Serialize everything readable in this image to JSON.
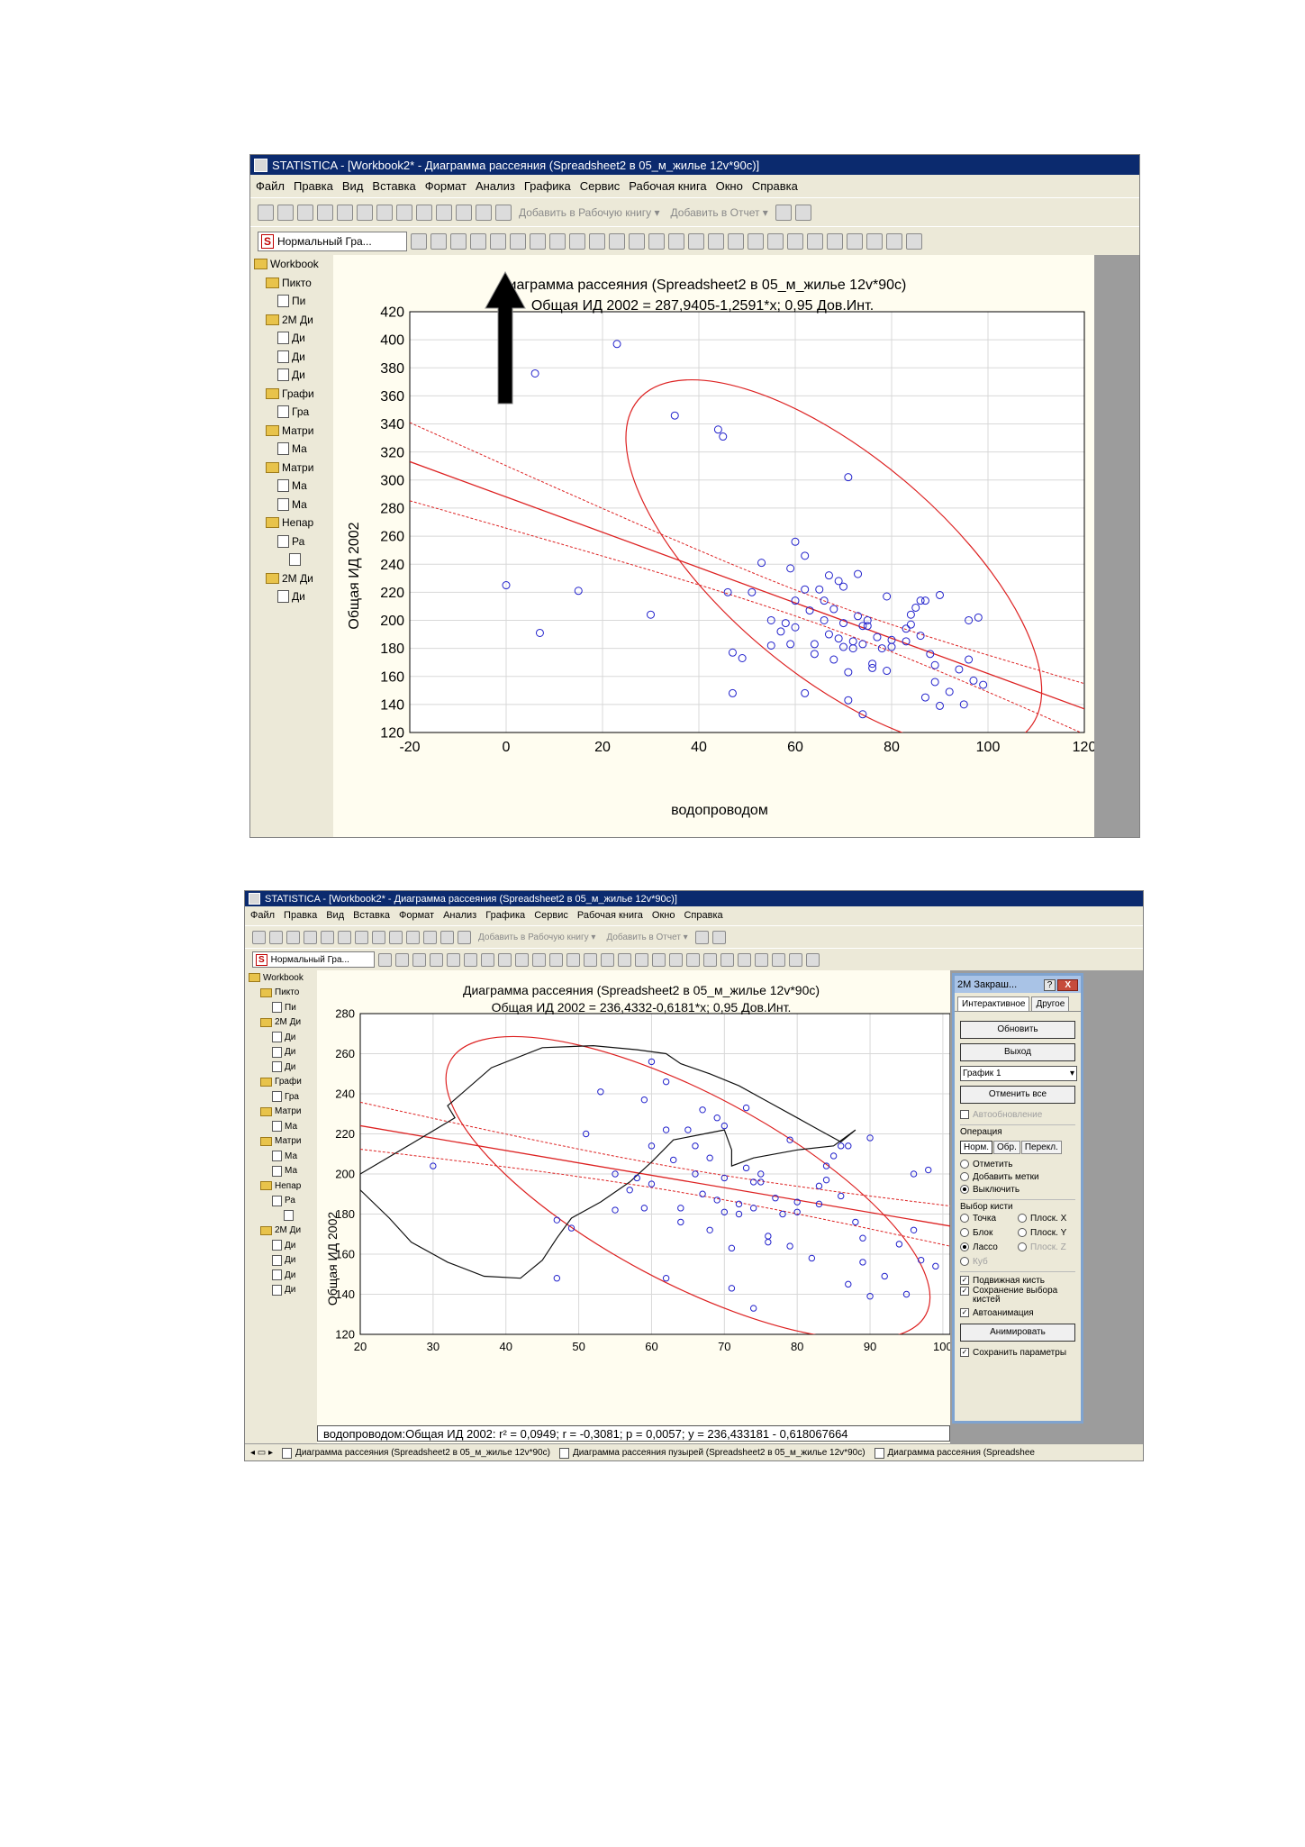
{
  "screenshot1": {
    "title": "STATISTICA - [Workbook2* - Диаграмма рассеяния (Spreadsheet2 в 05_м_жилье 12v*90c)]",
    "menu": [
      "Файл",
      "Правка",
      "Вид",
      "Вставка",
      "Формат",
      "Анализ",
      "Графика",
      "Сервис",
      "Рабочая книга",
      "Окно",
      "Справка"
    ],
    "toolbar_add_workbook": "Добавить в Рабочую книгу ▾",
    "toolbar_add_report": "Добавить в Отчет ▾",
    "style_combo": "Нормальный Гра...",
    "tree": [
      {
        "label": "Workbook",
        "level": 0
      },
      {
        "label": "Пикто",
        "level": 1
      },
      {
        "label": "Пи",
        "level": 2
      },
      {
        "label": "2М Ди",
        "level": 1
      },
      {
        "label": "Ди",
        "level": 2
      },
      {
        "label": "Ди",
        "level": 2
      },
      {
        "label": "Ди",
        "level": 2
      },
      {
        "label": "Графи",
        "level": 1
      },
      {
        "label": "Гра",
        "level": 2
      },
      {
        "label": "Матри",
        "level": 1
      },
      {
        "label": "Ма",
        "level": 2
      },
      {
        "label": "Матри",
        "level": 1
      },
      {
        "label": "Ма",
        "level": 2
      },
      {
        "label": "Ма",
        "level": 2
      },
      {
        "label": "Непар",
        "level": 1
      },
      {
        "label": "Ра",
        "level": 2
      },
      {
        "label": "",
        "level": 3
      },
      {
        "label": "2М Ди",
        "level": 1
      },
      {
        "label": "Ди",
        "level": 2
      }
    ]
  },
  "screenshot2": {
    "title": "STATISTICA - [Workbook2* - Диаграмма рассеяния (Spreadsheet2 в 05_м_жилье 12v*90c)]",
    "menu": [
      "Файл",
      "Правка",
      "Вид",
      "Вставка",
      "Формат",
      "Анализ",
      "Графика",
      "Сервис",
      "Рабочая книга",
      "Окно",
      "Справка"
    ],
    "toolbar_add_workbook": "Добавить в Рабочую книгу ▾",
    "toolbar_add_report": "Добавить в Отчет ▾",
    "style_combo": "Нормальный Гра...",
    "tree": [
      {
        "label": "Workbook",
        "level": 0
      },
      {
        "label": "Пикто",
        "level": 1
      },
      {
        "label": "Пи",
        "level": 2
      },
      {
        "label": "2М Ди",
        "level": 1
      },
      {
        "label": "Ди",
        "level": 2
      },
      {
        "label": "Ди",
        "level": 2
      },
      {
        "label": "Ди",
        "level": 2
      },
      {
        "label": "Графи",
        "level": 1
      },
      {
        "label": "Гра",
        "level": 2
      },
      {
        "label": "Матри",
        "level": 1
      },
      {
        "label": "Ма",
        "level": 2
      },
      {
        "label": "Матри",
        "level": 1
      },
      {
        "label": "Ма",
        "level": 2
      },
      {
        "label": "Ма",
        "level": 2
      },
      {
        "label": "Непар",
        "level": 1
      },
      {
        "label": "Ра",
        "level": 2
      },
      {
        "label": "",
        "level": 3
      },
      {
        "label": "2М Ди",
        "level": 1
      },
      {
        "label": "Ди",
        "level": 2
      },
      {
        "label": "Ди",
        "level": 2
      },
      {
        "label": "Ди",
        "level": 2
      },
      {
        "label": "Ди",
        "level": 2
      }
    ],
    "status": "водопроводом:Общая ИД 2002:  r² = 0,0949;  r = -0,3081; p = 0,0057;  y = 236,433181 - 0,618067664",
    "tabs": [
      "Диаграмма рассеяния (Spreadsheet2 в 05_м_жилье 12v*90c)",
      "Диаграмма рассеяния пузырей (Spreadsheet2 в 05_м_жилье 12v*90c)",
      "Диаграмма рассеяния (Spreadshee"
    ],
    "dialog": {
      "title": "2М Закраш...",
      "help": "?",
      "close": "X",
      "tab_interactive": "Интерактивное",
      "tab_other": "Другое",
      "btn_update": "Обновить",
      "btn_exit": "Выход",
      "graph_select": "График 1",
      "btn_unmark_all": "Отменить все",
      "auto_update": "Автообновление",
      "operation_label": "Операция",
      "seg_norm": "Норм.",
      "seg_obr": "Обр.",
      "seg_perekl": "Перекл.",
      "op_mark": "Отметить",
      "op_add_labels": "Добавить метки",
      "op_exclude": "Выключить",
      "brush_label": "Выбор кисти",
      "brush_point": "Точка",
      "brush_plane_x": "Плоск. X",
      "brush_block": "Блок",
      "brush_plane_y": "Плоск. Y",
      "brush_lasso": "Лассо",
      "brush_plane_z": "Плоск. Z",
      "brush_cube": "Куб",
      "movable_brush": "Подвижная кисть",
      "save_brush_selection": "Сохранение выбора кистей",
      "autoanimation": "Автоанимация",
      "btn_animate": "Анимировать",
      "save_params": "Сохранить параметры"
    }
  },
  "chart_data": [
    {
      "type": "scatter",
      "title": "Диаграмма рассеяния (Spreadsheet2 в 05_м_жилье 12v*90c)",
      "subtitle": "Общая ИД 2002 = 287,9405-1,2591*x; 0,95 Дов.Инт.",
      "xlabel": "водопроводом",
      "ylabel": "Общая ИД 2002",
      "xlim": [
        -20,
        120
      ],
      "ylim": [
        120,
        420
      ],
      "xticks": [
        -20,
        0,
        20,
        40,
        60,
        80,
        100,
        120
      ],
      "yticks": [
        120,
        140,
        160,
        180,
        200,
        220,
        240,
        260,
        280,
        300,
        320,
        340,
        360,
        380,
        400,
        420
      ],
      "grid": true,
      "regression": {
        "intercept": 287.9405,
        "slope": -1.2591
      },
      "ellipse": {
        "cx": 68,
        "cy": 240,
        "rx": 53,
        "ry": 78,
        "angle_deg": 40
      },
      "colors": {
        "points": "#2222cc",
        "lines": "#dd2222"
      },
      "points": [
        [
          0,
          225
        ],
        [
          6,
          376
        ],
        [
          7,
          191
        ],
        [
          15,
          221
        ],
        [
          23,
          397
        ],
        [
          30,
          204
        ],
        [
          35,
          346
        ],
        [
          44,
          336
        ],
        [
          45,
          331
        ],
        [
          46,
          220
        ],
        [
          47,
          148
        ],
        [
          47,
          177
        ],
        [
          49,
          173
        ],
        [
          51,
          220
        ],
        [
          53,
          241
        ],
        [
          55,
          182
        ],
        [
          55,
          200
        ],
        [
          57,
          192
        ],
        [
          58,
          198
        ],
        [
          59,
          183
        ],
        [
          59,
          237
        ],
        [
          60,
          256
        ],
        [
          60,
          214
        ],
        [
          60,
          195
        ],
        [
          62,
          246
        ],
        [
          62,
          148
        ],
        [
          62,
          222
        ],
        [
          63,
          207
        ],
        [
          64,
          183
        ],
        [
          64,
          176
        ],
        [
          65,
          222
        ],
        [
          66,
          214
        ],
        [
          66,
          200
        ],
        [
          67,
          232
        ],
        [
          67,
          190
        ],
        [
          68,
          172
        ],
        [
          68,
          208
        ],
        [
          69,
          187
        ],
        [
          69,
          228
        ],
        [
          70,
          224
        ],
        [
          70,
          198
        ],
        [
          70,
          181
        ],
        [
          71,
          143
        ],
        [
          71,
          302
        ],
        [
          71,
          163
        ],
        [
          72,
          185
        ],
        [
          72,
          180
        ],
        [
          73,
          233
        ],
        [
          73,
          203
        ],
        [
          74,
          196
        ],
        [
          74,
          183
        ],
        [
          74,
          133
        ],
        [
          75,
          196
        ],
        [
          75,
          200
        ],
        [
          76,
          166
        ],
        [
          76,
          169
        ],
        [
          77,
          188
        ],
        [
          78,
          180
        ],
        [
          79,
          164
        ],
        [
          79,
          217
        ],
        [
          80,
          181
        ],
        [
          80,
          186
        ],
        [
          83,
          185
        ],
        [
          83,
          194
        ],
        [
          84,
          197
        ],
        [
          84,
          204
        ],
        [
          85,
          209
        ],
        [
          86,
          189
        ],
        [
          86,
          214
        ],
        [
          87,
          214
        ],
        [
          87,
          145
        ],
        [
          88,
          176
        ],
        [
          89,
          168
        ],
        [
          89,
          156
        ],
        [
          90,
          139
        ],
        [
          90,
          218
        ],
        [
          92,
          149
        ],
        [
          94,
          165
        ],
        [
          95,
          140
        ],
        [
          96,
          200
        ],
        [
          96,
          172
        ],
        [
          97,
          157
        ],
        [
          98,
          202
        ],
        [
          99,
          154
        ]
      ]
    },
    {
      "type": "scatter",
      "title": "Диаграмма рассеяния (Spreadsheet2 в 05_м_жилье 12v*90c)",
      "subtitle": "Общая ИД 2002 = 236,4332-0,6181*x; 0,95 Дов.Инт.",
      "xlabel": "",
      "ylabel": "Общая ИД 2002",
      "xlim": [
        20,
        101
      ],
      "ylim": [
        120,
        280
      ],
      "xticks": [
        20,
        30,
        40,
        50,
        60,
        70,
        80,
        90,
        100
      ],
      "yticks": [
        120,
        140,
        160,
        180,
        200,
        220,
        240,
        260,
        280
      ],
      "grid": true,
      "regression": {
        "intercept": 236.4332,
        "slope": -0.6181
      },
      "ellipse": {
        "cx": 65,
        "cy": 193,
        "rx": 37,
        "ry": 47,
        "angle_deg": 28
      },
      "colors": {
        "points": "#2222cc",
        "lines": "#dd2222",
        "lasso": "#111111"
      },
      "points": [
        [
          30,
          204
        ],
        [
          47,
          148
        ],
        [
          47,
          177
        ],
        [
          49,
          173
        ],
        [
          51,
          220
        ],
        [
          53,
          241
        ],
        [
          55,
          182
        ],
        [
          55,
          200
        ],
        [
          57,
          192
        ],
        [
          58,
          198
        ],
        [
          59,
          183
        ],
        [
          59,
          237
        ],
        [
          60,
          256
        ],
        [
          60,
          214
        ],
        [
          60,
          195
        ],
        [
          62,
          246
        ],
        [
          62,
          148
        ],
        [
          62,
          222
        ],
        [
          63,
          207
        ],
        [
          64,
          183
        ],
        [
          64,
          176
        ],
        [
          65,
          222
        ],
        [
          66,
          214
        ],
        [
          66,
          200
        ],
        [
          67,
          232
        ],
        [
          67,
          190
        ],
        [
          68,
          172
        ],
        [
          68,
          208
        ],
        [
          69,
          187
        ],
        [
          69,
          228
        ],
        [
          70,
          224
        ],
        [
          70,
          198
        ],
        [
          70,
          181
        ],
        [
          71,
          143
        ],
        [
          71,
          163
        ],
        [
          72,
          185
        ],
        [
          72,
          180
        ],
        [
          73,
          233
        ],
        [
          73,
          203
        ],
        [
          74,
          196
        ],
        [
          74,
          183
        ],
        [
          74,
          133
        ],
        [
          75,
          196
        ],
        [
          75,
          200
        ],
        [
          76,
          166
        ],
        [
          76,
          169
        ],
        [
          77,
          188
        ],
        [
          78,
          180
        ],
        [
          79,
          164
        ],
        [
          79,
          217
        ],
        [
          80,
          181
        ],
        [
          80,
          186
        ],
        [
          82,
          158
        ],
        [
          83,
          185
        ],
        [
          83,
          194
        ],
        [
          84,
          197
        ],
        [
          84,
          204
        ],
        [
          85,
          209
        ],
        [
          86,
          189
        ],
        [
          86,
          214
        ],
        [
          87,
          214
        ],
        [
          87,
          145
        ],
        [
          88,
          176
        ],
        [
          89,
          168
        ],
        [
          89,
          156
        ],
        [
          90,
          139
        ],
        [
          90,
          218
        ],
        [
          92,
          149
        ],
        [
          94,
          165
        ],
        [
          95,
          140
        ],
        [
          96,
          200
        ],
        [
          96,
          172
        ],
        [
          97,
          157
        ],
        [
          98,
          202
        ],
        [
          99,
          154
        ]
      ]
    }
  ]
}
